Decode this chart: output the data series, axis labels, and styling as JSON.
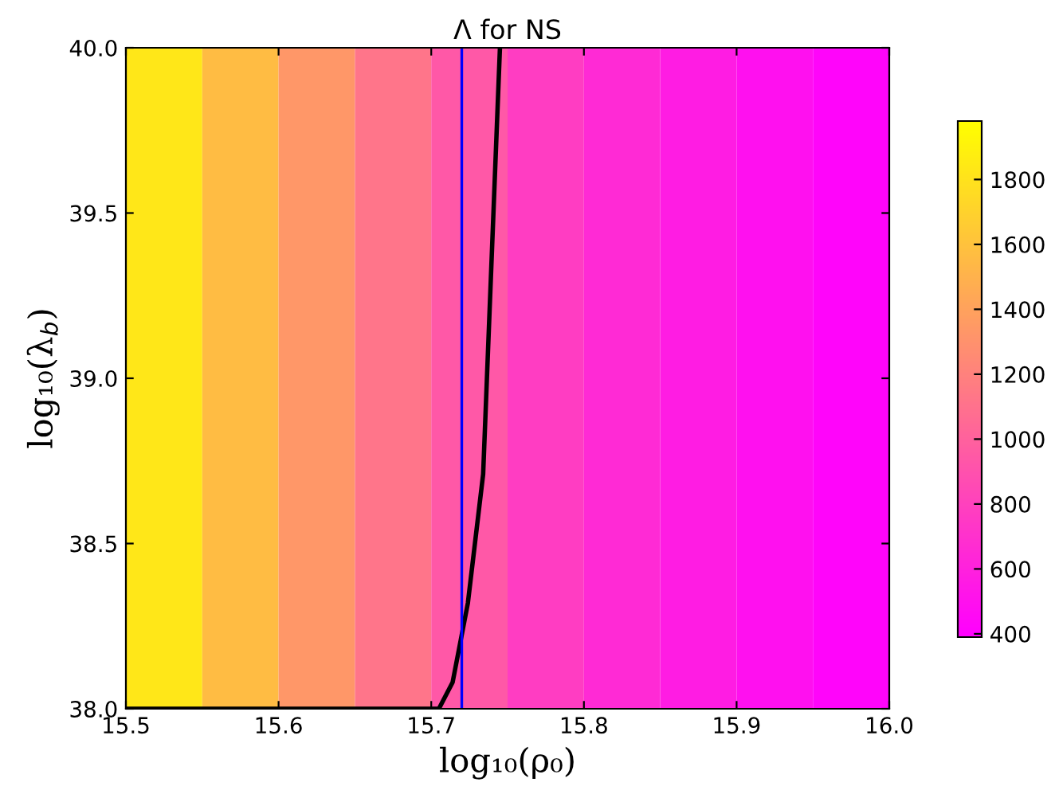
{
  "chart_data": {
    "type": "heatmap",
    "title": "Λ for NS",
    "xlabel": "log₁₀(ρ₀)",
    "ylabel": "log₁₀(λ$_{b}$)",
    "x": [
      15.525,
      15.575,
      15.625,
      15.675,
      15.725,
      15.775,
      15.825,
      15.875,
      15.925,
      15.975
    ],
    "cells": [
      [
        1830,
        1560,
        1330,
        1120,
        940,
        775,
        655,
        570,
        495,
        425
      ]
    ],
    "clim": [
      390,
      1980
    ],
    "cticks": [
      400,
      600,
      800,
      1000,
      1200,
      1400,
      1600,
      1800
    ],
    "xlim": [
      15.5,
      16.0
    ],
    "ylim": [
      38.0,
      40.0
    ],
    "xticks": [
      {
        "value": 15.5,
        "label": "15.5"
      },
      {
        "value": 15.6,
        "label": "15.6"
      },
      {
        "value": 15.7,
        "label": "15.7"
      },
      {
        "value": 15.8,
        "label": "15.8"
      },
      {
        "value": 15.9,
        "label": "15.9"
      },
      {
        "value": 16.0,
        "label": "16.0"
      }
    ],
    "yticks": [
      {
        "value": 38.0,
        "label": "38.0"
      },
      {
        "value": 38.5,
        "label": "38.5"
      },
      {
        "value": 39.0,
        "label": "39.0"
      },
      {
        "value": 39.5,
        "label": "39.5"
      },
      {
        "value": 40.0,
        "label": "40.0"
      }
    ],
    "series": [
      {
        "type": "line",
        "color": "#000000",
        "x": [
          15.5,
          15.705,
          15.714,
          15.724,
          15.734,
          15.745
        ],
        "values": [
          38.0,
          38.0,
          38.08,
          38.32,
          38.71,
          40.0
        ]
      }
    ],
    "ref_lines": [
      {
        "axis": "x",
        "value": 15.72,
        "color": "#0000ff"
      }
    ],
    "grid": false,
    "legend": false
  }
}
